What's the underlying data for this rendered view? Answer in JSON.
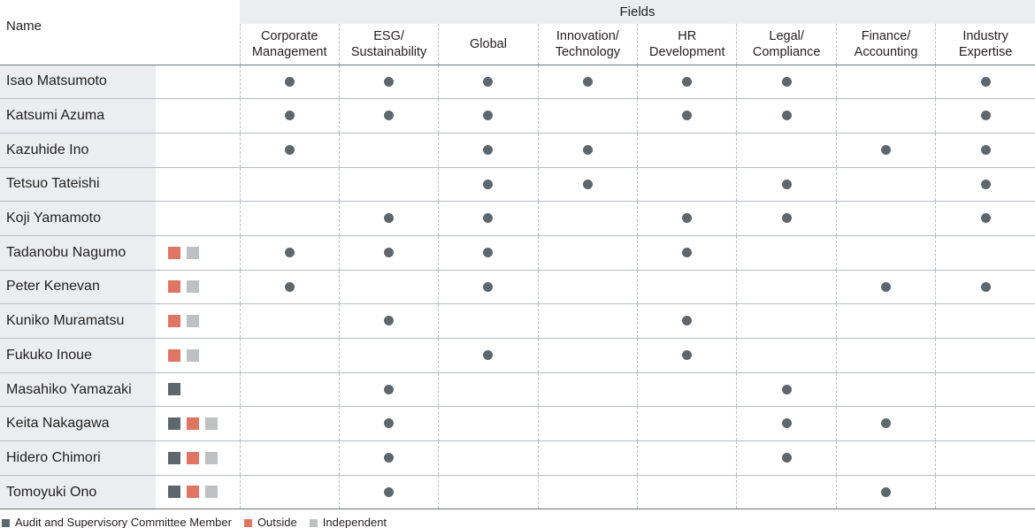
{
  "header": {
    "name_label": "Name",
    "fields_label": "Fields",
    "fields": [
      {
        "line1": "Corporate",
        "line2": "Management"
      },
      {
        "line1": "ESG/",
        "line2": "Sustainability"
      },
      {
        "line1": "Global",
        "line2": ""
      },
      {
        "line1": "Innovation/",
        "line2": "Technology"
      },
      {
        "line1": "HR",
        "line2": "Development"
      },
      {
        "line1": "Legal/",
        "line2": "Compliance"
      },
      {
        "line1": "Finance/",
        "line2": "Accounting"
      },
      {
        "line1": "Industry",
        "line2": "Expertise"
      }
    ]
  },
  "colors": {
    "audit": "#5e676e",
    "outside": "#e07563",
    "independent": "#bfc0c1",
    "dot": "#5e676e"
  },
  "legend": [
    {
      "key": "audit",
      "label": "Audit and Supervisory Committee Member"
    },
    {
      "key": "outside",
      "label": "Outside"
    },
    {
      "key": "independent",
      "label": "Independent"
    }
  ],
  "rows": [
    {
      "name": "Isao Matsumoto",
      "badges": [],
      "marks": [
        1,
        1,
        1,
        1,
        1,
        1,
        0,
        1
      ]
    },
    {
      "name": "Katsumi Azuma",
      "badges": [],
      "marks": [
        1,
        1,
        1,
        0,
        1,
        1,
        0,
        1
      ]
    },
    {
      "name": "Kazuhide Ino",
      "badges": [],
      "marks": [
        1,
        0,
        1,
        1,
        0,
        0,
        1,
        1
      ]
    },
    {
      "name": "Tetsuo Tateishi",
      "badges": [],
      "marks": [
        0,
        0,
        1,
        1,
        0,
        1,
        0,
        1
      ]
    },
    {
      "name": "Koji Yamamoto",
      "badges": [],
      "marks": [
        0,
        1,
        1,
        0,
        1,
        1,
        0,
        1
      ]
    },
    {
      "name": "Tadanobu Nagumo",
      "badges": [
        "outside",
        "independent"
      ],
      "marks": [
        1,
        1,
        1,
        0,
        1,
        0,
        0,
        0
      ]
    },
    {
      "name": "Peter Kenevan",
      "badges": [
        "outside",
        "independent"
      ],
      "marks": [
        1,
        0,
        1,
        0,
        0,
        0,
        1,
        1
      ]
    },
    {
      "name": "Kuniko Muramatsu",
      "badges": [
        "outside",
        "independent"
      ],
      "marks": [
        0,
        1,
        0,
        0,
        1,
        0,
        0,
        0
      ]
    },
    {
      "name": "Fukuko Inoue",
      "badges": [
        "outside",
        "independent"
      ],
      "marks": [
        0,
        0,
        1,
        0,
        1,
        0,
        0,
        0
      ]
    },
    {
      "name": "Masahiko Yamazaki",
      "badges": [
        "audit"
      ],
      "marks": [
        0,
        1,
        0,
        0,
        0,
        1,
        0,
        0
      ]
    },
    {
      "name": "Keita Nakagawa",
      "badges": [
        "audit",
        "outside",
        "independent"
      ],
      "marks": [
        0,
        1,
        0,
        0,
        0,
        1,
        1,
        0
      ]
    },
    {
      "name": "Hidero Chimori",
      "badges": [
        "audit",
        "outside",
        "independent"
      ],
      "marks": [
        0,
        1,
        0,
        0,
        0,
        1,
        0,
        0
      ]
    },
    {
      "name": "Tomoyuki Ono",
      "badges": [
        "audit",
        "outside",
        "independent"
      ],
      "marks": [
        0,
        1,
        0,
        0,
        0,
        0,
        1,
        0
      ]
    }
  ]
}
